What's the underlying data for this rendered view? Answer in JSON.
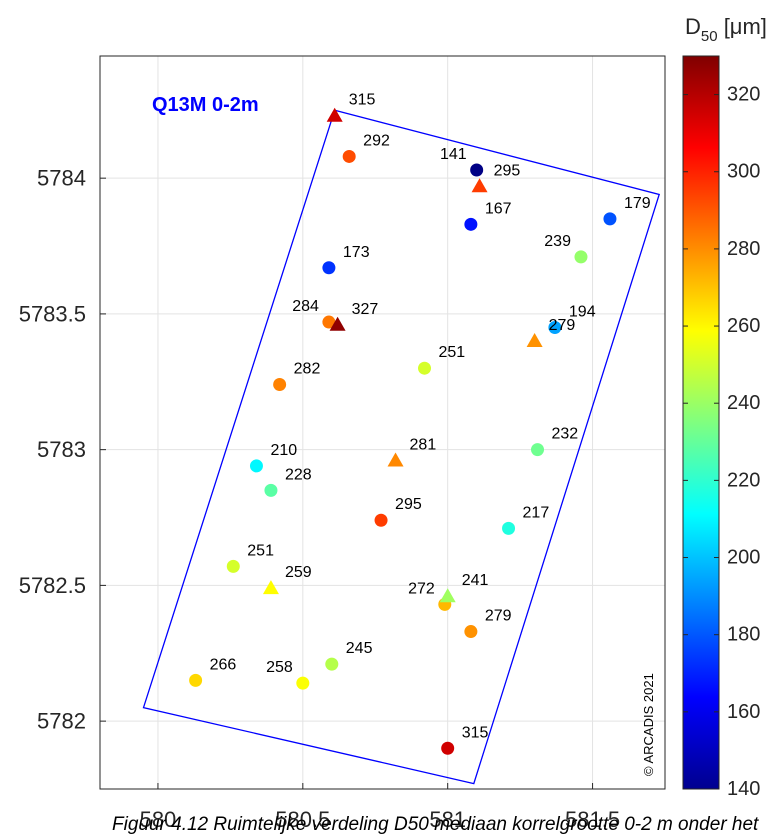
{
  "chart_data": {
    "type": "scatter",
    "title": "",
    "region_label": "Q13M 0-2m",
    "xlim": [
      579.8,
      581.75
    ],
    "ylim": [
      5781.75,
      5784.45
    ],
    "x_ticks": [
      "580",
      "580.5",
      "581",
      "581.5"
    ],
    "y_ticks": [
      "5782",
      "5782.5",
      "5783",
      "5783.5",
      "5784"
    ],
    "x_tick_values": [
      580,
      580.5,
      581,
      581.5
    ],
    "y_tick_values": [
      5782,
      5782.5,
      5783,
      5783.5,
      5784
    ],
    "grid": true,
    "colorbar": {
      "title": "D",
      "title_sub": "50",
      "title_unit": " [μm]",
      "range": [
        140,
        330
      ],
      "ticks": [
        "140",
        "160",
        "180",
        "200",
        "220",
        "240",
        "260",
        "280",
        "300",
        "320"
      ],
      "tick_values": [
        140,
        160,
        180,
        200,
        220,
        240,
        260,
        280,
        300,
        320
      ],
      "colormap": "jet"
    },
    "boundary": [
      [
        580.61,
        5784.25
      ],
      [
        581.73,
        5783.94
      ],
      [
        581.09,
        5781.77
      ],
      [
        579.95,
        5782.05
      ]
    ],
    "circles": [
      {
        "x": 580.66,
        "y": 5784.08,
        "value": 292,
        "label": "292"
      },
      {
        "x": 581.1,
        "y": 5784.03,
        "value": 141,
        "label": "141"
      },
      {
        "x": 581.08,
        "y": 5783.83,
        "value": 167,
        "label": "167"
      },
      {
        "x": 581.56,
        "y": 5783.85,
        "value": 179,
        "label": "179"
      },
      {
        "x": 580.59,
        "y": 5783.67,
        "value": 173,
        "label": "173"
      },
      {
        "x": 581.46,
        "y": 5783.71,
        "value": 239,
        "label": "239"
      },
      {
        "x": 580.59,
        "y": 5783.47,
        "value": 284,
        "label": "284"
      },
      {
        "x": 581.37,
        "y": 5783.45,
        "value": 194,
        "label": "194"
      },
      {
        "x": 580.92,
        "y": 5783.3,
        "value": 251,
        "label": "251"
      },
      {
        "x": 580.42,
        "y": 5783.24,
        "value": 282,
        "label": "282"
      },
      {
        "x": 581.31,
        "y": 5783.0,
        "value": 232,
        "label": "232"
      },
      {
        "x": 580.34,
        "y": 5782.94,
        "value": 210,
        "label": "210"
      },
      {
        "x": 580.39,
        "y": 5782.85,
        "value": 228,
        "label": "228"
      },
      {
        "x": 580.77,
        "y": 5782.74,
        "value": 295,
        "label": "295"
      },
      {
        "x": 581.21,
        "y": 5782.71,
        "value": 217,
        "label": "217"
      },
      {
        "x": 580.26,
        "y": 5782.57,
        "value": 251,
        "label": "251"
      },
      {
        "x": 580.99,
        "y": 5782.43,
        "value": 272,
        "label": "272"
      },
      {
        "x": 581.08,
        "y": 5782.33,
        "value": 279,
        "label": "279"
      },
      {
        "x": 580.6,
        "y": 5782.21,
        "value": 245,
        "label": "245"
      },
      {
        "x": 580.13,
        "y": 5782.15,
        "value": 266,
        "label": "266"
      },
      {
        "x": 580.5,
        "y": 5782.14,
        "value": 258,
        "label": "258"
      },
      {
        "x": 581.0,
        "y": 5781.9,
        "value": 315,
        "label": "315"
      }
    ],
    "triangles": [
      {
        "x": 580.61,
        "y": 5784.23,
        "value": 315,
        "label": "315"
      },
      {
        "x": 581.11,
        "y": 5783.97,
        "value": 295,
        "label": "295"
      },
      {
        "x": 580.62,
        "y": 5783.46,
        "value": 327,
        "label": "327"
      },
      {
        "x": 581.3,
        "y": 5783.4,
        "value": 279,
        "label": "279"
      },
      {
        "x": 580.82,
        "y": 5782.96,
        "value": 281,
        "label": "281"
      },
      {
        "x": 581.0,
        "y": 5782.46,
        "value": 241,
        "label": "241"
      },
      {
        "x": 580.39,
        "y": 5782.49,
        "value": 259,
        "label": "259"
      }
    ],
    "copyright": "© ARCADIS 2021"
  },
  "caption": "Figuur 4.12 Ruimtelijke verdeling D50 mediaan korrelgrootte 0-2 m onder het"
}
